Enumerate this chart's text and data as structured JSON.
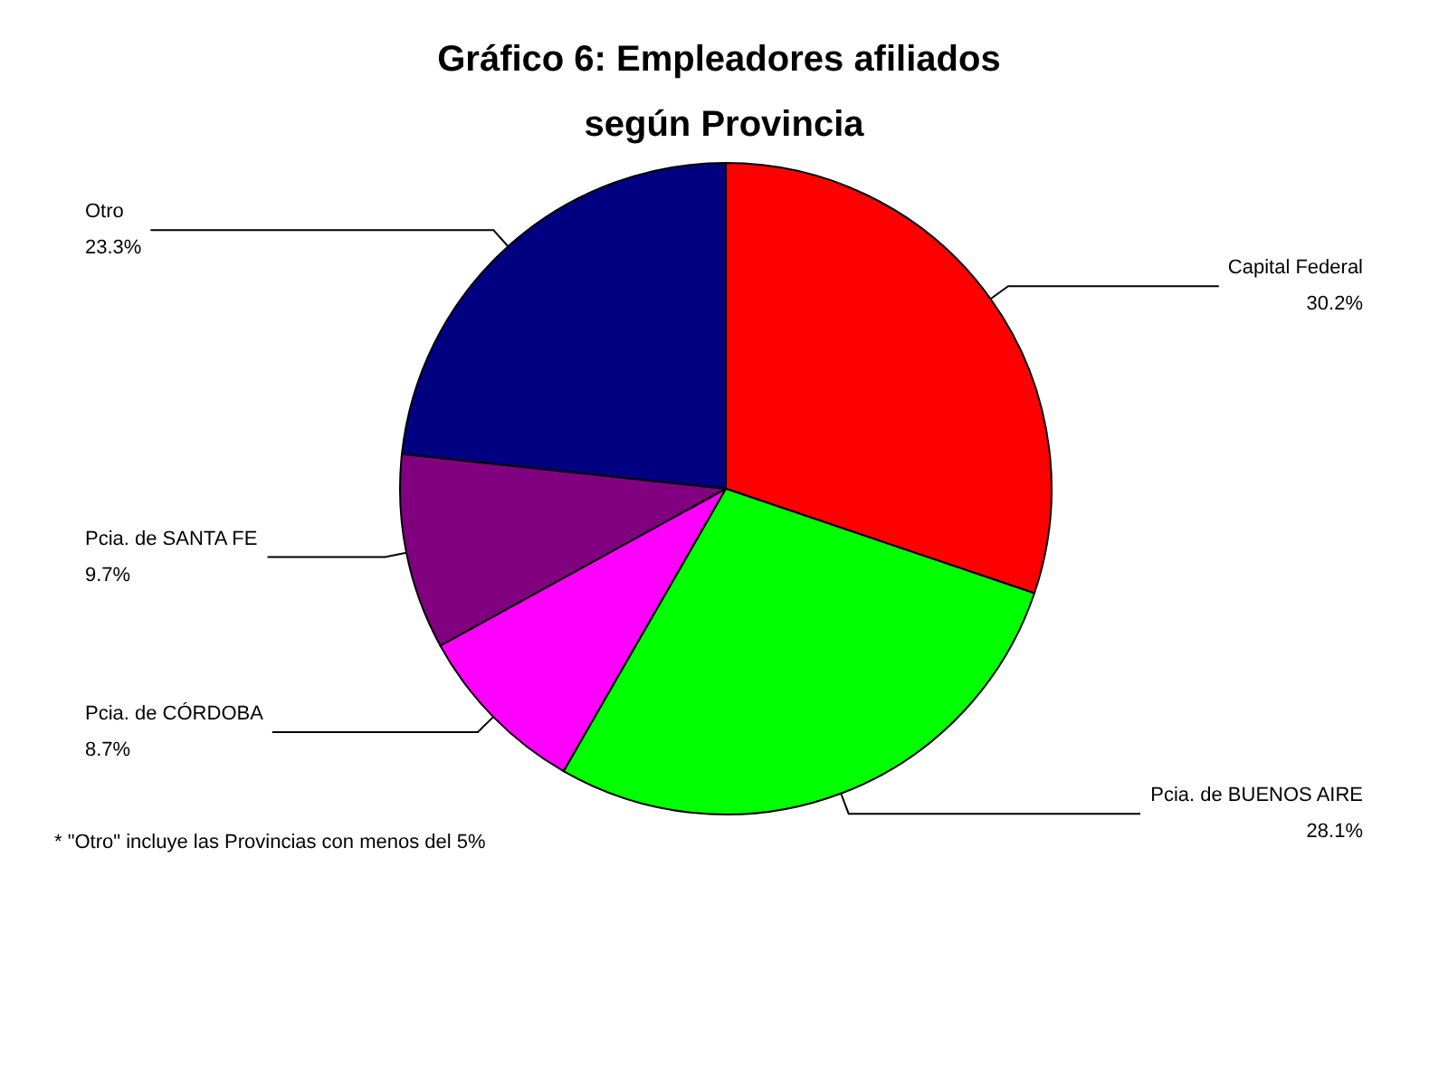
{
  "chart_data": {
    "type": "pie",
    "title": "Gráfico 6: Empleadores afiliados según Provincia",
    "categories": [
      "Capital Federal",
      "Pcia. de BUENOS AIRE",
      "Pcia. de CÓRDOBA",
      "Pcia. de SANTA FE",
      "Otro"
    ],
    "values": [
      30.2,
      28.1,
      8.7,
      9.7,
      23.3
    ],
    "colors": [
      "#ff0000",
      "#00ff00",
      "#ff00ff",
      "#800080",
      "#000080"
    ],
    "value_labels": [
      "30.2%",
      "28.1%",
      "8.7%",
      "9.7%",
      "23.3%"
    ],
    "annotations": [
      "* \"Otro\" incluye las Provincias con menos del 5%"
    ]
  }
}
